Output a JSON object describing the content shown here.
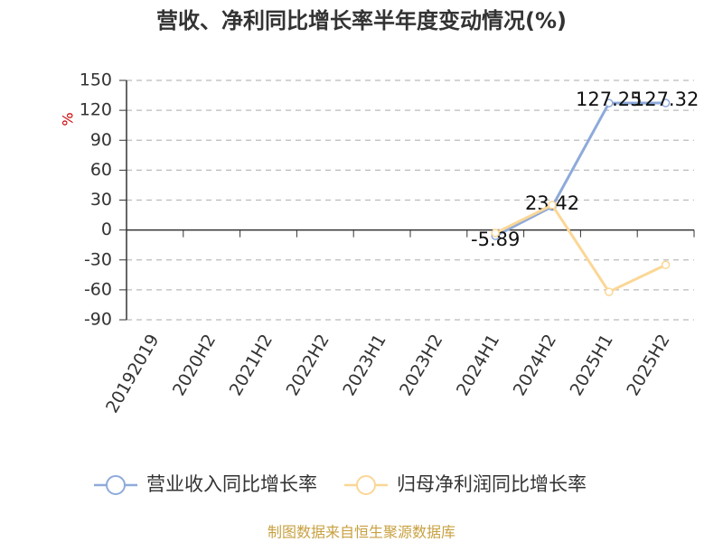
{
  "chart_data": {
    "type": "line",
    "title": "营收、净利同比增长率半年度变动情况(%)",
    "y_label": "%",
    "source": "制图数据来自恒生聚源数据库",
    "categories": [
      "20192019",
      "2020H2",
      "2021H2",
      "2022H2",
      "2023H1",
      "2023H2",
      "2024H1",
      "2024H2",
      "2025H1",
      "2025H2"
    ],
    "series": [
      {
        "name": "营业收入同比增长率",
        "color": "#8eaadb",
        "values": [
          null,
          null,
          null,
          null,
          null,
          null,
          -5.89,
          23.42,
          127.25,
          127.32
        ]
      },
      {
        "name": "归母净利润同比增长率",
        "color": "#fbd796",
        "values": [
          null,
          null,
          null,
          null,
          null,
          null,
          -3,
          25,
          -62,
          -35
        ]
      }
    ],
    "ylim": [
      -90,
      150
    ],
    "yticks": [
      -90,
      -60,
      -30,
      0,
      30,
      60,
      90,
      120,
      150
    ],
    "grid": true
  }
}
